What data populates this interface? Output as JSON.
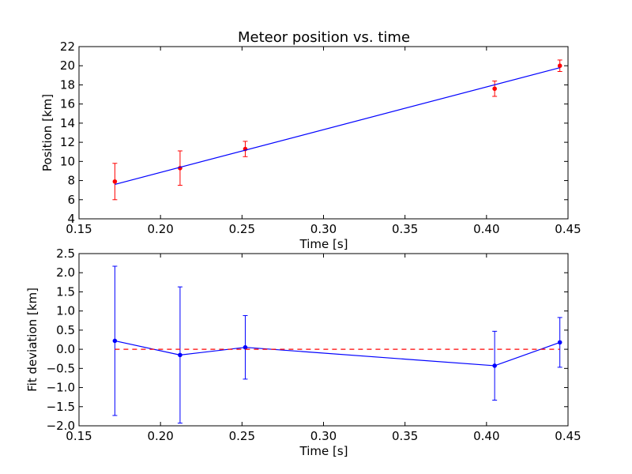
{
  "chart_data": [
    {
      "type": "scatter",
      "title": "Meteor position vs. time",
      "xlabel": "Time [s]",
      "ylabel": "Position [km]",
      "xlim": [
        0.15,
        0.45
      ],
      "ylim": [
        4,
        22
      ],
      "xticks": [
        0.15,
        0.2,
        0.25,
        0.3,
        0.35,
        0.4,
        0.45
      ],
      "xtick_labels": [
        "0.15",
        "0.20",
        "0.25",
        "0.30",
        "0.35",
        "0.40",
        "0.45"
      ],
      "yticks": [
        4,
        6,
        8,
        10,
        12,
        14,
        16,
        18,
        20,
        22
      ],
      "ytick_labels": [
        "4",
        "6",
        "8",
        "10",
        "12",
        "14",
        "16",
        "18",
        "20",
        "22"
      ],
      "grid": false,
      "legend": "none",
      "series": [
        {
          "kind": "errorbar",
          "color": "#ff0000",
          "x": [
            0.172,
            0.212,
            0.252,
            0.405,
            0.445
          ],
          "y": [
            7.9,
            9.3,
            11.3,
            17.6,
            20.0
          ],
          "yerr": [
            1.9,
            1.8,
            0.8,
            0.8,
            0.6
          ]
        },
        {
          "kind": "line",
          "color": "#0000ff",
          "x": [
            0.172,
            0.445
          ],
          "y": [
            7.6,
            19.8
          ]
        }
      ]
    },
    {
      "type": "line",
      "title": "",
      "xlabel": "Time [s]",
      "ylabel": "Fit deviation [km]",
      "xlim": [
        0.15,
        0.45
      ],
      "ylim": [
        -2.0,
        2.5
      ],
      "xticks": [
        0.15,
        0.2,
        0.25,
        0.3,
        0.35,
        0.4,
        0.45
      ],
      "xtick_labels": [
        "0.15",
        "0.20",
        "0.25",
        "0.30",
        "0.35",
        "0.40",
        "0.45"
      ],
      "yticks": [
        -2.0,
        -1.5,
        -1.0,
        -0.5,
        0.0,
        0.5,
        1.0,
        1.5,
        2.0,
        2.5
      ],
      "ytick_labels": [
        "−2.0",
        "−1.5",
        "−1.0",
        "−0.5",
        "0.0",
        "0.5",
        "1.0",
        "1.5",
        "2.0",
        "2.5"
      ],
      "grid": false,
      "legend": "none",
      "series": [
        {
          "kind": "errorbar-line",
          "color": "#0000ff",
          "x": [
            0.172,
            0.212,
            0.252,
            0.405,
            0.445
          ],
          "y": [
            0.22,
            -0.15,
            0.05,
            -0.43,
            0.18
          ],
          "yerr": [
            1.95,
            1.78,
            0.83,
            0.9,
            0.65
          ]
        },
        {
          "kind": "dashed-line",
          "color": "#ff0000",
          "x": [
            0.172,
            0.445
          ],
          "y": [
            0.0,
            0.0
          ]
        }
      ]
    }
  ]
}
